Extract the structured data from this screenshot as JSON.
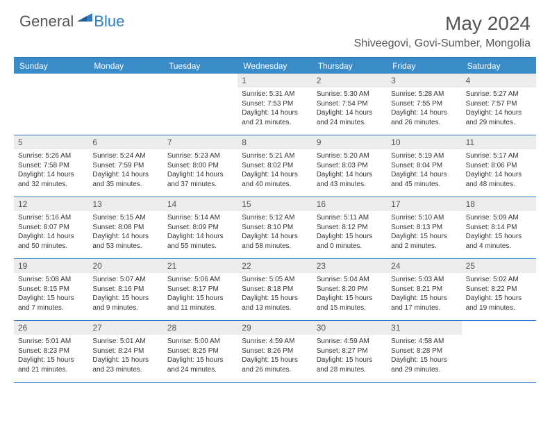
{
  "logo": {
    "general": "General",
    "blue": "Blue"
  },
  "title": "May 2024",
  "location": "Shiveegovi, Govi-Sumber, Mongolia",
  "colors": {
    "header_blue": "#3a8cc9",
    "border_blue": "#2f7bbf",
    "daynum_bg": "#ececec",
    "text_gray": "#555555"
  },
  "weekdays": [
    "Sunday",
    "Monday",
    "Tuesday",
    "Wednesday",
    "Thursday",
    "Friday",
    "Saturday"
  ],
  "weeks": [
    [
      {
        "num": "",
        "lines": []
      },
      {
        "num": "",
        "lines": []
      },
      {
        "num": "",
        "lines": []
      },
      {
        "num": "1",
        "lines": [
          "Sunrise: 5:31 AM",
          "Sunset: 7:53 PM",
          "Daylight: 14 hours",
          "and 21 minutes."
        ]
      },
      {
        "num": "2",
        "lines": [
          "Sunrise: 5:30 AM",
          "Sunset: 7:54 PM",
          "Daylight: 14 hours",
          "and 24 minutes."
        ]
      },
      {
        "num": "3",
        "lines": [
          "Sunrise: 5:28 AM",
          "Sunset: 7:55 PM",
          "Daylight: 14 hours",
          "and 26 minutes."
        ]
      },
      {
        "num": "4",
        "lines": [
          "Sunrise: 5:27 AM",
          "Sunset: 7:57 PM",
          "Daylight: 14 hours",
          "and 29 minutes."
        ]
      }
    ],
    [
      {
        "num": "5",
        "lines": [
          "Sunrise: 5:26 AM",
          "Sunset: 7:58 PM",
          "Daylight: 14 hours",
          "and 32 minutes."
        ]
      },
      {
        "num": "6",
        "lines": [
          "Sunrise: 5:24 AM",
          "Sunset: 7:59 PM",
          "Daylight: 14 hours",
          "and 35 minutes."
        ]
      },
      {
        "num": "7",
        "lines": [
          "Sunrise: 5:23 AM",
          "Sunset: 8:00 PM",
          "Daylight: 14 hours",
          "and 37 minutes."
        ]
      },
      {
        "num": "8",
        "lines": [
          "Sunrise: 5:21 AM",
          "Sunset: 8:02 PM",
          "Daylight: 14 hours",
          "and 40 minutes."
        ]
      },
      {
        "num": "9",
        "lines": [
          "Sunrise: 5:20 AM",
          "Sunset: 8:03 PM",
          "Daylight: 14 hours",
          "and 43 minutes."
        ]
      },
      {
        "num": "10",
        "lines": [
          "Sunrise: 5:19 AM",
          "Sunset: 8:04 PM",
          "Daylight: 14 hours",
          "and 45 minutes."
        ]
      },
      {
        "num": "11",
        "lines": [
          "Sunrise: 5:17 AM",
          "Sunset: 8:06 PM",
          "Daylight: 14 hours",
          "and 48 minutes."
        ]
      }
    ],
    [
      {
        "num": "12",
        "lines": [
          "Sunrise: 5:16 AM",
          "Sunset: 8:07 PM",
          "Daylight: 14 hours",
          "and 50 minutes."
        ]
      },
      {
        "num": "13",
        "lines": [
          "Sunrise: 5:15 AM",
          "Sunset: 8:08 PM",
          "Daylight: 14 hours",
          "and 53 minutes."
        ]
      },
      {
        "num": "14",
        "lines": [
          "Sunrise: 5:14 AM",
          "Sunset: 8:09 PM",
          "Daylight: 14 hours",
          "and 55 minutes."
        ]
      },
      {
        "num": "15",
        "lines": [
          "Sunrise: 5:12 AM",
          "Sunset: 8:10 PM",
          "Daylight: 14 hours",
          "and 58 minutes."
        ]
      },
      {
        "num": "16",
        "lines": [
          "Sunrise: 5:11 AM",
          "Sunset: 8:12 PM",
          "Daylight: 15 hours",
          "and 0 minutes."
        ]
      },
      {
        "num": "17",
        "lines": [
          "Sunrise: 5:10 AM",
          "Sunset: 8:13 PM",
          "Daylight: 15 hours",
          "and 2 minutes."
        ]
      },
      {
        "num": "18",
        "lines": [
          "Sunrise: 5:09 AM",
          "Sunset: 8:14 PM",
          "Daylight: 15 hours",
          "and 4 minutes."
        ]
      }
    ],
    [
      {
        "num": "19",
        "lines": [
          "Sunrise: 5:08 AM",
          "Sunset: 8:15 PM",
          "Daylight: 15 hours",
          "and 7 minutes."
        ]
      },
      {
        "num": "20",
        "lines": [
          "Sunrise: 5:07 AM",
          "Sunset: 8:16 PM",
          "Daylight: 15 hours",
          "and 9 minutes."
        ]
      },
      {
        "num": "21",
        "lines": [
          "Sunrise: 5:06 AM",
          "Sunset: 8:17 PM",
          "Daylight: 15 hours",
          "and 11 minutes."
        ]
      },
      {
        "num": "22",
        "lines": [
          "Sunrise: 5:05 AM",
          "Sunset: 8:18 PM",
          "Daylight: 15 hours",
          "and 13 minutes."
        ]
      },
      {
        "num": "23",
        "lines": [
          "Sunrise: 5:04 AM",
          "Sunset: 8:20 PM",
          "Daylight: 15 hours",
          "and 15 minutes."
        ]
      },
      {
        "num": "24",
        "lines": [
          "Sunrise: 5:03 AM",
          "Sunset: 8:21 PM",
          "Daylight: 15 hours",
          "and 17 minutes."
        ]
      },
      {
        "num": "25",
        "lines": [
          "Sunrise: 5:02 AM",
          "Sunset: 8:22 PM",
          "Daylight: 15 hours",
          "and 19 minutes."
        ]
      }
    ],
    [
      {
        "num": "26",
        "lines": [
          "Sunrise: 5:01 AM",
          "Sunset: 8:23 PM",
          "Daylight: 15 hours",
          "and 21 minutes."
        ]
      },
      {
        "num": "27",
        "lines": [
          "Sunrise: 5:01 AM",
          "Sunset: 8:24 PM",
          "Daylight: 15 hours",
          "and 23 minutes."
        ]
      },
      {
        "num": "28",
        "lines": [
          "Sunrise: 5:00 AM",
          "Sunset: 8:25 PM",
          "Daylight: 15 hours",
          "and 24 minutes."
        ]
      },
      {
        "num": "29",
        "lines": [
          "Sunrise: 4:59 AM",
          "Sunset: 8:26 PM",
          "Daylight: 15 hours",
          "and 26 minutes."
        ]
      },
      {
        "num": "30",
        "lines": [
          "Sunrise: 4:59 AM",
          "Sunset: 8:27 PM",
          "Daylight: 15 hours",
          "and 28 minutes."
        ]
      },
      {
        "num": "31",
        "lines": [
          "Sunrise: 4:58 AM",
          "Sunset: 8:28 PM",
          "Daylight: 15 hours",
          "and 29 minutes."
        ]
      },
      {
        "num": "",
        "lines": []
      }
    ]
  ]
}
